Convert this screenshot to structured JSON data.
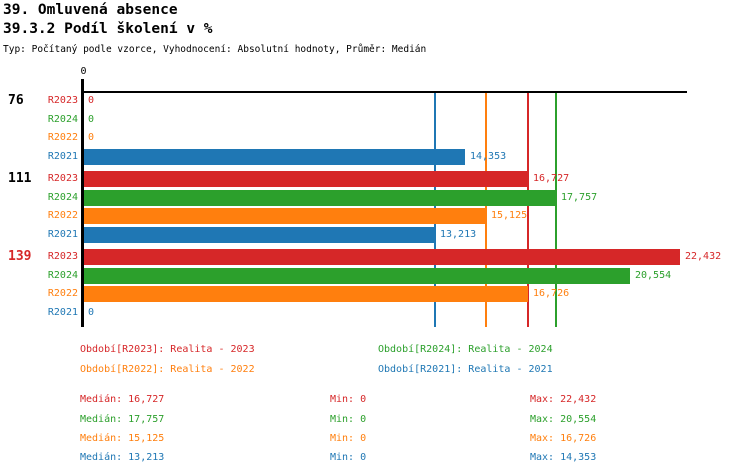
{
  "header": {
    "title1": "39. Omluvená absence",
    "title2": "39.3.2 Podíl školení v %",
    "subtitle": "Typ: Počítaný podle vzorce, Vyhodnocení: Absolutní hodnoty, Průměr: Medián"
  },
  "chart_data": {
    "type": "bar",
    "orientation": "horizontal",
    "title": "39.3.2 Podíl školení v %",
    "axis": {
      "tick_label": "0",
      "xmin": 0,
      "xmax": 22700,
      "grid": false
    },
    "series": [
      {
        "id": "R2023",
        "color": "#d62728",
        "legend": "Období[R2023]: Realita - 2023",
        "median": 16727
      },
      {
        "id": "R2024",
        "color": "#2ca02c",
        "legend": "Období[R2024]: Realita - 2024",
        "median": 17757
      },
      {
        "id": "R2022",
        "color": "#ff7f0e",
        "legend": "Období[R2022]: Realita - 2022",
        "median": 15125
      },
      {
        "id": "R2021",
        "color": "#1f77b4",
        "legend": "Období[R2021]: Realita - 2021",
        "median": 13213
      }
    ],
    "row_labels": [
      "R2023",
      "R2024",
      "R2022",
      "R2021"
    ],
    "groups": [
      {
        "label": "76",
        "label_color": "#000000",
        "values": [
          0,
          0,
          0,
          14353
        ],
        "value_labels": [
          "0",
          "0",
          "0",
          "14,353"
        ]
      },
      {
        "label": "111",
        "label_color": "#000000",
        "values": [
          16727,
          17757,
          15125,
          13213
        ],
        "value_labels": [
          "16,727",
          "17,757",
          "15,125",
          "13,213"
        ]
      },
      {
        "label": "139",
        "label_color": "#d62728",
        "values": [
          22432,
          20554,
          16726,
          0
        ],
        "value_labels": [
          "22,432",
          "20,554",
          "16,726",
          "0"
        ]
      }
    ],
    "median_lines": [
      {
        "series": "R2023",
        "value": 16727,
        "color": "#d62728"
      },
      {
        "series": "R2024",
        "value": 17757,
        "color": "#2ca02c"
      },
      {
        "series": "R2022",
        "value": 15125,
        "color": "#ff7f0e"
      },
      {
        "series": "R2021",
        "value": 13213,
        "color": "#1f77b4"
      }
    ],
    "legend_position": "bottom-two-columns"
  },
  "stats": {
    "median_label": "Medián",
    "min_label": "Min",
    "max_label": "Max",
    "rows": [
      {
        "series": "R2023",
        "color": "#d62728",
        "median": "16,727",
        "min": "0",
        "max": "22,432"
      },
      {
        "series": "R2024",
        "color": "#2ca02c",
        "median": "17,757",
        "min": "0",
        "max": "20,554"
      },
      {
        "series": "R2022",
        "color": "#ff7f0e",
        "median": "15,125",
        "min": "0",
        "max": "16,726"
      },
      {
        "series": "R2021",
        "color": "#1f77b4",
        "median": "13,213",
        "min": "0",
        "max": "14,353"
      }
    ]
  }
}
